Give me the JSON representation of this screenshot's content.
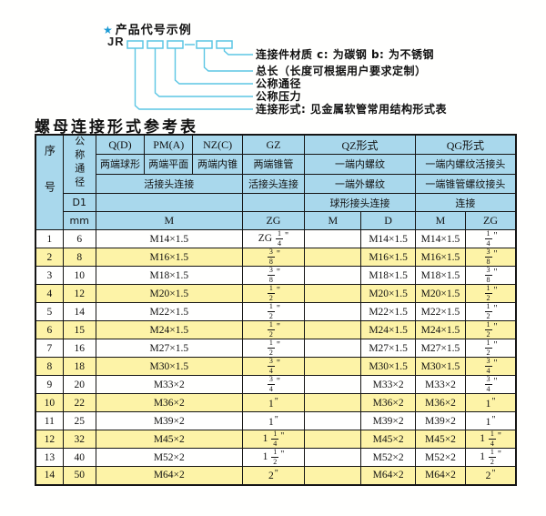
{
  "colors": {
    "header_blue": "#a9d8ec",
    "row_yellow": "#fdf3a7",
    "border_dark": "#151515",
    "accent_cyan": "#5cc6e4",
    "star_blue": "#1b9ad4"
  },
  "diagram": {
    "star": "★",
    "title": "产品代号示例",
    "prefix": "JR",
    "labels": [
      "连接件材质  c: 为碳钢  b: 为不锈钢",
      "总长（长度可根据用户要求定制）",
      "公称通径",
      "公称压力",
      "连接形式: 见金属软管常用结构形式表"
    ]
  },
  "table": {
    "title": "螺母连接形式参考表",
    "header": {
      "seq": "序号",
      "dn": "公称通径",
      "d1": "D1",
      "mm": "mm",
      "groups": [
        "Q(D)",
        "PM(A)",
        "NZ(C)",
        "GZ",
        "QZ形式",
        "QG形式"
      ],
      "row2": [
        "两端球形",
        "两端平面",
        "两端内锥",
        "两端锥管",
        "一端内螺纹",
        "一端内螺纹活接头"
      ],
      "row3": [
        "活接头连接",
        "活接头连接",
        "一端外螺纹",
        "一端锥管螺纹接头"
      ],
      "row4": [
        "球形接头连接",
        "连接"
      ],
      "row5": [
        "M",
        "ZG",
        "M",
        "D",
        "M",
        "ZG"
      ]
    },
    "rows": [
      [
        "1",
        "6",
        "M14×1.5",
        "ZG 1/4\"",
        "",
        "M14×1.5",
        "M14×1.5",
        "1/4\""
      ],
      [
        "2",
        "8",
        "M16×1.5",
        "3/8\"",
        "",
        "M16×1.5",
        "M16×1.5",
        "3/8\""
      ],
      [
        "3",
        "10",
        "M18×1.5",
        "3/8\"",
        "",
        "M18×1.5",
        "M18×1.5",
        "3/8\""
      ],
      [
        "4",
        "12",
        "M20×1.5",
        "1/2\"",
        "",
        "M20×1.5",
        "M20×1.5",
        "1/2\""
      ],
      [
        "5",
        "14",
        "M22×1.5",
        "1/2\"",
        "",
        "M22×1.5",
        "M22×1.5",
        "1/2\""
      ],
      [
        "6",
        "15",
        "M24×1.5",
        "1/2\"",
        "",
        "M24×1.5",
        "M24×1.5",
        "1/2\""
      ],
      [
        "7",
        "16",
        "M27×1.5",
        "1/2\"",
        "",
        "M27×1.5",
        "M27×1.5",
        "1/2\""
      ],
      [
        "8",
        "18",
        "M30×1.5",
        "3/4\"",
        "",
        "M30×1.5",
        "M30×1.5",
        "3/4\""
      ],
      [
        "9",
        "20",
        "M33×2",
        "3/4\"",
        "",
        "M33×2",
        "M33×2",
        "3/4\""
      ],
      [
        "10",
        "22",
        "M36×2",
        "1\"",
        "",
        "M36×2",
        "M36×2",
        "1\""
      ],
      [
        "11",
        "25",
        "M39×2",
        "1\"",
        "",
        "M39×2",
        "M39×2",
        "1\""
      ],
      [
        "12",
        "32",
        "M45×2",
        "1 1/4\"",
        "",
        "M45×2",
        "M45×2",
        "1 1/4\""
      ],
      [
        "13",
        "40",
        "M52×2",
        "1 1/2\"",
        "",
        "M52×2",
        "M52×2",
        "1 1/2\""
      ],
      [
        "14",
        "50",
        "M64×2",
        "2\"",
        "",
        "M64×2",
        "M64×2",
        "2\""
      ]
    ]
  }
}
